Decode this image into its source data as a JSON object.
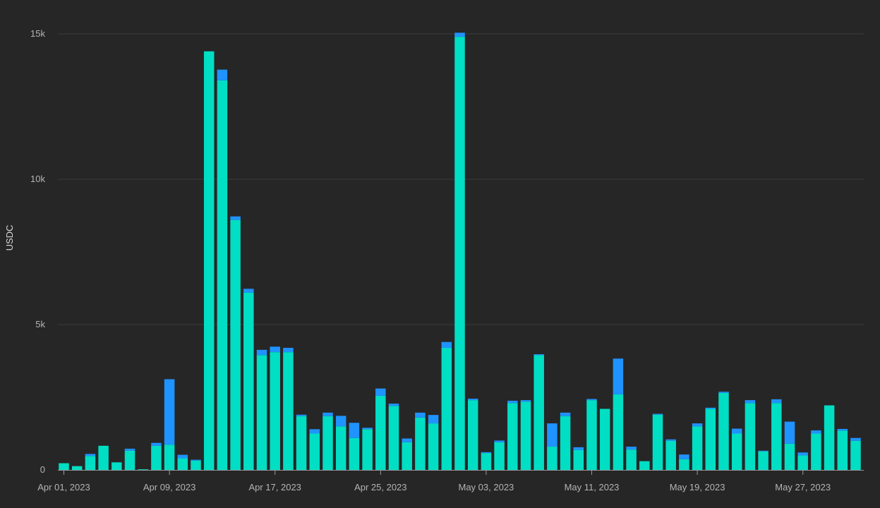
{
  "chart_data": {
    "type": "bar",
    "stacked": true,
    "ylabel": "USDC",
    "xlabel": "",
    "title": "",
    "ylim": [
      0,
      15000
    ],
    "y_ticks": [
      {
        "value": 0,
        "label": "0"
      },
      {
        "value": 5000,
        "label": "5k"
      },
      {
        "value": 10000,
        "label": "10k"
      },
      {
        "value": 15000,
        "label": "15k"
      }
    ],
    "x_ticks": [
      {
        "date": "2023-04-01",
        "label": "Apr 01, 2023"
      },
      {
        "date": "2023-04-09",
        "label": "Apr 09, 2023"
      },
      {
        "date": "2023-04-17",
        "label": "Apr 17, 2023"
      },
      {
        "date": "2023-04-25",
        "label": "Apr 25, 2023"
      },
      {
        "date": "2023-05-03",
        "label": "May 03, 2023"
      },
      {
        "date": "2023-05-11",
        "label": "May 11, 2023"
      },
      {
        "date": "2023-05-19",
        "label": "May 19, 2023"
      },
      {
        "date": "2023-05-27",
        "label": "May 27, 2023"
      }
    ],
    "grid": true,
    "colors": {
      "background": "#262626",
      "gridline": "#3a3a3a",
      "axis": "#9a9a9a",
      "text": "#b4b4b4"
    },
    "categories": [
      "2023-04-01",
      "2023-04-02",
      "2023-04-03",
      "2023-04-04",
      "2023-04-05",
      "2023-04-06",
      "2023-04-07",
      "2023-04-08",
      "2023-04-09",
      "2023-04-10",
      "2023-04-11",
      "2023-04-12",
      "2023-04-13",
      "2023-04-14",
      "2023-04-15",
      "2023-04-16",
      "2023-04-17",
      "2023-04-18",
      "2023-04-19",
      "2023-04-20",
      "2023-04-21",
      "2023-04-22",
      "2023-04-23",
      "2023-04-24",
      "2023-04-25",
      "2023-04-26",
      "2023-04-27",
      "2023-04-28",
      "2023-04-29",
      "2023-04-30",
      "2023-05-01",
      "2023-05-02",
      "2023-05-03",
      "2023-05-04",
      "2023-05-05",
      "2023-05-06",
      "2023-05-07",
      "2023-05-08",
      "2023-05-09",
      "2023-05-10",
      "2023-05-11",
      "2023-05-12",
      "2023-05-13",
      "2023-05-14",
      "2023-05-15",
      "2023-05-16",
      "2023-05-17",
      "2023-05-18",
      "2023-05-19",
      "2023-05-20",
      "2023-05-21",
      "2023-05-22",
      "2023-05-23",
      "2023-05-24",
      "2023-05-25",
      "2023-05-26",
      "2023-05-27",
      "2023-05-28",
      "2023-05-29",
      "2023-05-30",
      "2023-05-31"
    ],
    "series": [
      {
        "color": "#00dec3",
        "values": [
          230,
          130,
          480,
          830,
          260,
          660,
          20,
          830,
          870,
          400,
          320,
          14400,
          13400,
          8600,
          6100,
          3950,
          4050,
          4050,
          1850,
          1250,
          1850,
          1500,
          1100,
          1400,
          2550,
          2200,
          950,
          1800,
          1600,
          4200,
          14900,
          2400,
          580,
          950,
          2300,
          2350,
          3950,
          800,
          1850,
          680,
          2400,
          2100,
          2600,
          700,
          300,
          1900,
          1000,
          370,
          1500,
          2100,
          2650,
          1250,
          2300,
          640,
          2300,
          900,
          500,
          1250,
          2220,
          1350,
          1000
        ]
      },
      {
        "color": "#1f93ff",
        "values": [
          0,
          0,
          70,
          0,
          0,
          70,
          0,
          100,
          2250,
          120,
          30,
          0,
          370,
          120,
          130,
          180,
          190,
          150,
          50,
          150,
          120,
          360,
          520,
          50,
          250,
          80,
          130,
          170,
          290,
          200,
          140,
          50,
          30,
          60,
          80,
          50,
          30,
          800,
          120,
          100,
          40,
          0,
          1230,
          100,
          0,
          30,
          50,
          160,
          100,
          40,
          40,
          170,
          100,
          20,
          130,
          760,
          100,
          110,
          0,
          60,
          100
        ]
      }
    ]
  }
}
